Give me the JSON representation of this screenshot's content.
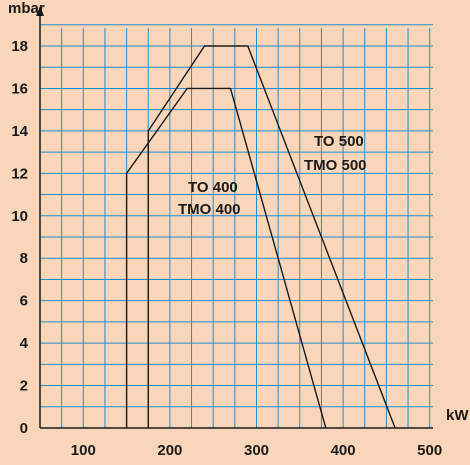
{
  "chart_data": {
    "type": "line",
    "xlabel": "kW",
    "ylabel": "mbar",
    "xlim": [
      50,
      500
    ],
    "ylim": [
      0,
      19
    ],
    "x_ticks": [
      100,
      200,
      300,
      400,
      500
    ],
    "y_ticks": [
      0,
      2,
      4,
      6,
      8,
      10,
      12,
      14,
      16,
      18
    ],
    "grid": true,
    "colors": {
      "background": "#f9d6b9",
      "grid": "#1f8fd0",
      "line": "#1a1a1a"
    },
    "series": [
      {
        "name": "TO 400 / TMO 400",
        "label_lines": [
          "TO 400",
          "TMO 400"
        ],
        "x": [
          150,
          150,
          220,
          270,
          380
        ],
        "y": [
          0,
          12,
          16,
          16,
          0
        ]
      },
      {
        "name": "TO 500 / TMO 500",
        "label_lines": [
          "TO 500",
          "TMO 500"
        ],
        "x": [
          175,
          175,
          240,
          290,
          460
        ],
        "y": [
          0,
          14,
          18,
          18,
          0
        ]
      }
    ]
  }
}
